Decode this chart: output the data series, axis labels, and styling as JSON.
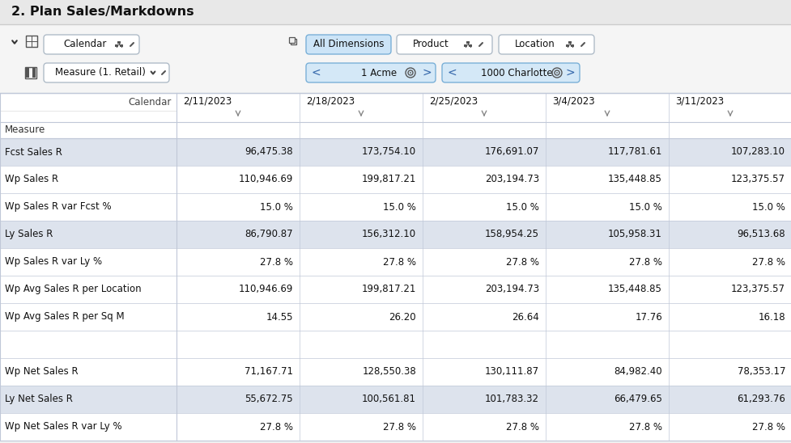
{
  "title": "2. Plan Sales/Markdowns",
  "bg_color": "#f0f0f0",
  "table_bg": "#ffffff",
  "shaded_row_bg": "#dde3ed",
  "white_row_bg": "#ffffff",
  "header_row_bg": "#ffffff",
  "border_color": "#c0c8d8",
  "text_dark": "#111111",
  "text_mid": "#444444",
  "col_headers": [
    "2/11/2023",
    "2/18/2023",
    "2/25/2023",
    "3/4/2023",
    "3/11/2023"
  ],
  "row_labels": [
    "Fcst Sales R",
    "Wp Sales R",
    "Wp Sales R var Fcst %",
    "Ly Sales R",
    "Wp Sales R var Ly %",
    "Wp Avg Sales R per Location",
    "Wp Avg Sales R per Sq M",
    "",
    "Wp Net Sales R",
    "Ly Net Sales R",
    "Wp Net Sales R var Ly %"
  ],
  "row_shaded": [
    true,
    false,
    false,
    true,
    false,
    false,
    false,
    false,
    false,
    true,
    false
  ],
  "row_data": [
    [
      "96,475.38",
      "173,754.10",
      "176,691.07",
      "117,781.61",
      "107,283.10"
    ],
    [
      "110,946.69",
      "199,817.21",
      "203,194.73",
      "135,448.85",
      "123,375.57"
    ],
    [
      "15.0 %",
      "15.0 %",
      "15.0 %",
      "15.0 %",
      "15.0 %"
    ],
    [
      "86,790.87",
      "156,312.10",
      "158,954.25",
      "105,958.31",
      "96,513.68"
    ],
    [
      "27.8 %",
      "27.8 %",
      "27.8 %",
      "27.8 %",
      "27.8 %"
    ],
    [
      "110,946.69",
      "199,817.21",
      "203,194.73",
      "135,448.85",
      "123,375.57"
    ],
    [
      "14.55",
      "26.20",
      "26.64",
      "17.76",
      "16.18"
    ],
    [
      "",
      "",
      "",
      "",
      ""
    ],
    [
      "71,167.71",
      "128,550.38",
      "130,111.87",
      "84,982.40",
      "78,353.17"
    ],
    [
      "55,672.75",
      "100,561.81",
      "101,783.32",
      "66,479.65",
      "61,293.76"
    ],
    [
      "27.8 %",
      "27.8 %",
      "27.8 %",
      "27.8 %",
      "27.8 %"
    ]
  ],
  "calendar_label": "Calendar",
  "measure_label": "Measure (1. Retail)",
  "measure_section_label": "Measure",
  "nav_label1": "1 Acme",
  "nav_label2": "1000 Charlotte",
  "btn_all_dim": "All Dimensions",
  "btn_product": "Product",
  "btn_location": "Location"
}
